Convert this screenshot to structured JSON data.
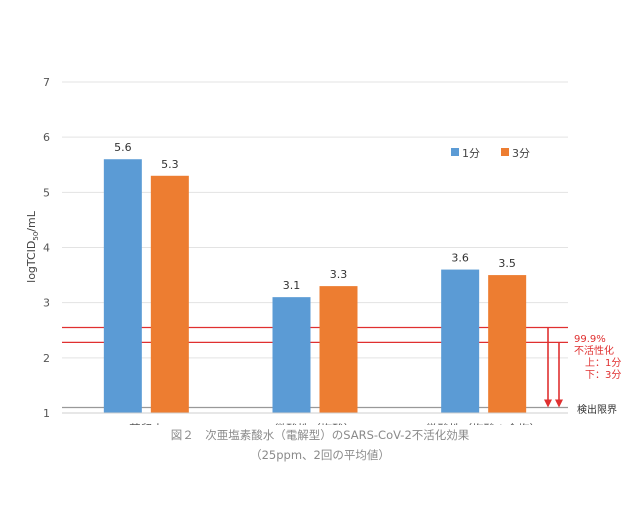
{
  "chart_data": {
    "type": "bar",
    "ylabel_main": "logTCID",
    "ylabel_sub": "50",
    "ylabel_tail": "/mL",
    "ylim": [
      1,
      7
    ],
    "yticks": [
      1,
      2,
      3,
      4,
      5,
      6,
      7
    ],
    "grid": true,
    "legend_position": "top-right",
    "categories": [
      "蒸留水",
      "微酸性（塩酸）",
      "微酸性（塩酸＋食塩）"
    ],
    "series": [
      {
        "name": "1分",
        "color": "#5b9bd5",
        "values": [
          5.6,
          3.1,
          3.6
        ],
        "labels": [
          "5.6",
          "3.1",
          "3.6"
        ]
      },
      {
        "name": "3分",
        "color": "#ed7d31",
        "values": [
          5.3,
          3.3,
          3.5
        ],
        "labels": [
          "5.3",
          "3.3",
          "3.5"
        ]
      }
    ],
    "reference_lines": [
      {
        "y": 2.55,
        "color": "#e03030"
      },
      {
        "y": 2.28,
        "color": "#e03030"
      },
      {
        "y": 1.1,
        "color": "#999999"
      }
    ],
    "annotation": {
      "color": "#e03030",
      "lines": [
        "99.9%",
        "不活性化",
        "上：1分",
        "下：3分"
      ]
    },
    "detection_limit_label": "検出限界"
  },
  "caption": {
    "line1": "図２　次亜塩素酸水（電解型）のSARS-CoV-2不活化効果",
    "line2": "（25ppm、2回の平均値）"
  }
}
